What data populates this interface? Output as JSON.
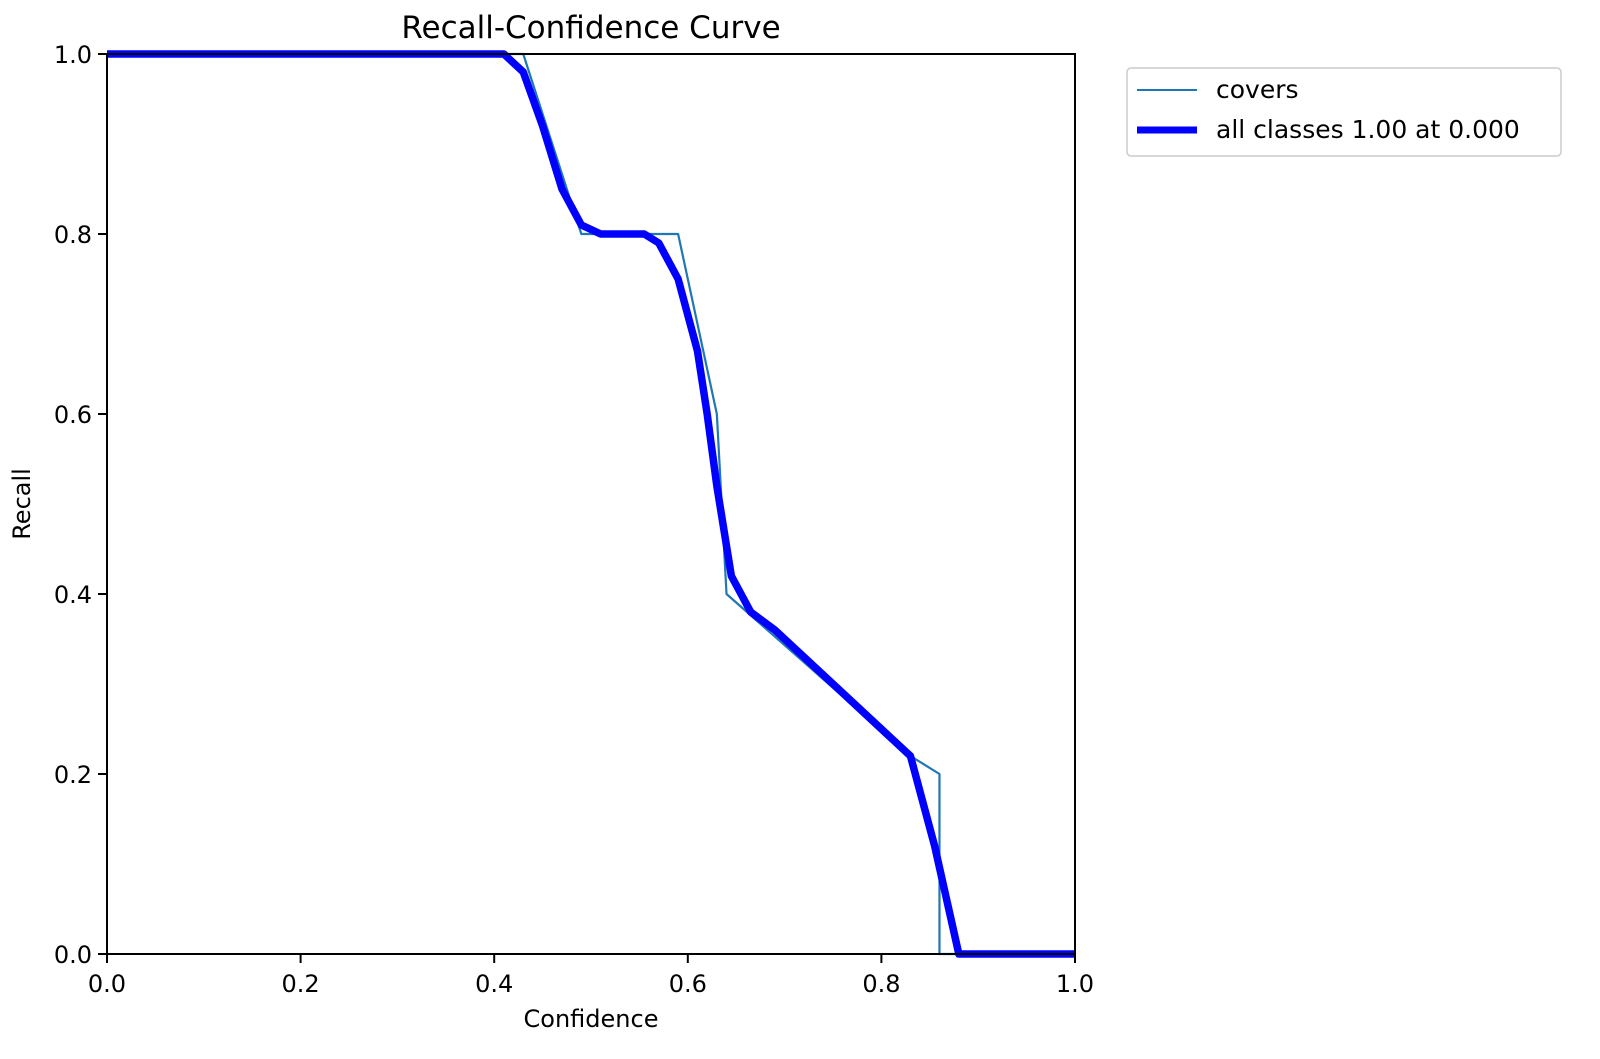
{
  "chart_data": {
    "type": "line",
    "title": "Recall-Confidence Curve",
    "xlabel": "Confidence",
    "ylabel": "Recall",
    "xlim": [
      0,
      1
    ],
    "ylim": [
      0,
      1
    ],
    "xticks": [
      "0.0",
      "0.2",
      "0.4",
      "0.6",
      "0.8",
      "1.0"
    ],
    "yticks": [
      "0.0",
      "0.2",
      "0.4",
      "0.6",
      "0.8",
      "1.0"
    ],
    "grid": false,
    "legend_position": "outside top-right",
    "series": [
      {
        "name": "covers",
        "color": "#1f77b4",
        "x": [
          0.0,
          0.43,
          0.49,
          0.59,
          0.63,
          0.64,
          0.83,
          0.86,
          0.86,
          1.0
        ],
        "y": [
          1.0,
          1.0,
          0.8,
          0.8,
          0.6,
          0.4,
          0.22,
          0.2,
          0.0,
          0.0
        ]
      },
      {
        "name": "all classes 1.00 at 0.000",
        "color": "#0000ff",
        "x": [
          0.0,
          0.41,
          0.43,
          0.45,
          0.47,
          0.49,
          0.51,
          0.53,
          0.555,
          0.57,
          0.59,
          0.61,
          0.62,
          0.63,
          0.645,
          0.665,
          0.69,
          0.75,
          0.83,
          0.855,
          0.88,
          0.9,
          1.0
        ],
        "y": [
          1.0,
          1.0,
          0.98,
          0.92,
          0.85,
          0.81,
          0.8,
          0.8,
          0.8,
          0.79,
          0.75,
          0.67,
          0.6,
          0.52,
          0.42,
          0.38,
          0.36,
          0.3,
          0.22,
          0.12,
          0.0,
          0.0,
          0.0
        ]
      }
    ]
  }
}
